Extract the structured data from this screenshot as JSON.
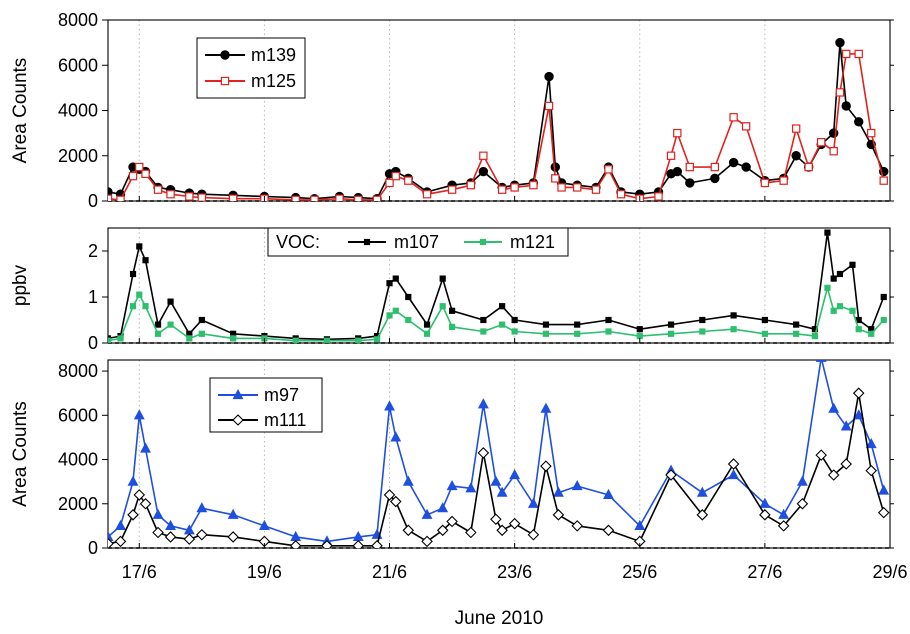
{
  "figure": {
    "xlabel": "June 2010",
    "x_ticks": [
      "17/6",
      "19/6",
      "21/6",
      "23/6",
      "25/6",
      "27/6",
      "29/6"
    ]
  },
  "chart_data": [
    {
      "type": "line",
      "panel": "top",
      "ylabel": "Area Counts",
      "ylim": [
        0,
        8000
      ],
      "y_ticks": [
        "0",
        "2000",
        "4000",
        "6000",
        "8000"
      ],
      "xlim": [
        16.5,
        29.0
      ],
      "grid": "vertical dotted",
      "legend": "top-left",
      "series": [
        {
          "name": "m139",
          "color": "#000000",
          "marker": "filled-circle",
          "x": [
            16.5,
            16.7,
            16.9,
            17.0,
            17.1,
            17.3,
            17.5,
            17.8,
            18.0,
            18.5,
            19.0,
            19.5,
            19.8,
            20.2,
            20.5,
            20.8,
            21.0,
            21.1,
            21.3,
            21.6,
            22.0,
            22.3,
            22.5,
            22.8,
            23.0,
            23.3,
            23.55,
            23.65,
            23.75,
            24.0,
            24.3,
            24.5,
            24.7,
            25.0,
            25.3,
            25.5,
            25.6,
            25.8,
            26.2,
            26.5,
            26.7,
            27.0,
            27.3,
            27.5,
            27.7,
            27.9,
            28.1,
            28.2,
            28.3,
            28.5,
            28.7,
            28.9
          ],
          "y": [
            400,
            300,
            1500,
            1400,
            1300,
            600,
            500,
            350,
            300,
            250,
            200,
            150,
            100,
            200,
            150,
            100,
            1200,
            1300,
            1000,
            400,
            700,
            800,
            1300,
            600,
            700,
            800,
            5500,
            1500,
            800,
            700,
            600,
            1500,
            400,
            300,
            400,
            1200,
            1300,
            800,
            1000,
            1700,
            1500,
            900,
            1000,
            2000,
            1500,
            2500,
            3000,
            7000,
            4200,
            3500,
            2500,
            1300
          ]
        },
        {
          "name": "m125",
          "color": "#e0231f",
          "marker": "open-square",
          "x": [
            16.5,
            16.7,
            16.9,
            17.0,
            17.1,
            17.3,
            17.5,
            17.8,
            18.0,
            18.5,
            19.0,
            19.5,
            19.8,
            20.2,
            20.5,
            20.8,
            21.0,
            21.1,
            21.3,
            21.6,
            22.0,
            22.3,
            22.5,
            22.8,
            23.0,
            23.3,
            23.55,
            23.65,
            23.75,
            24.0,
            24.3,
            24.5,
            24.7,
            25.0,
            25.3,
            25.5,
            25.6,
            25.8,
            26.2,
            26.5,
            26.7,
            27.0,
            27.3,
            27.5,
            27.7,
            27.9,
            28.1,
            28.2,
            28.3,
            28.5,
            28.7,
            28.9
          ],
          "y": [
            100,
            50,
            1100,
            1500,
            1200,
            500,
            300,
            200,
            150,
            100,
            100,
            50,
            50,
            100,
            50,
            50,
            800,
            1100,
            900,
            300,
            500,
            700,
            2000,
            500,
            600,
            700,
            4200,
            1000,
            600,
            600,
            500,
            1400,
            300,
            100,
            200,
            2000,
            3000,
            1500,
            1500,
            3700,
            3300,
            800,
            900,
            3200,
            1500,
            2600,
            2200,
            4800,
            6500,
            6500,
            3000,
            900
          ]
        }
      ]
    },
    {
      "type": "line",
      "panel": "middle",
      "ylabel": "ppbv",
      "ylim": [
        0,
        2.5
      ],
      "y_ticks": [
        "0",
        "1",
        "2"
      ],
      "xlim": [
        16.5,
        29.0
      ],
      "grid": "vertical dotted",
      "legend": "top-center",
      "legend_title": "VOC:",
      "series": [
        {
          "name": "m107",
          "color": "#000000",
          "marker": "filled-square",
          "x": [
            16.5,
            16.7,
            16.9,
            17.0,
            17.1,
            17.3,
            17.5,
            17.8,
            18.0,
            18.5,
            19.0,
            19.5,
            20.0,
            20.5,
            20.8,
            21.0,
            21.1,
            21.3,
            21.6,
            21.85,
            22.0,
            22.5,
            22.8,
            23.0,
            23.5,
            24.0,
            24.5,
            25.0,
            25.5,
            26.0,
            26.5,
            27.0,
            27.5,
            27.8,
            28.0,
            28.1,
            28.2,
            28.4,
            28.5,
            28.7,
            28.9
          ],
          "y": [
            0.1,
            0.15,
            1.5,
            2.1,
            1.8,
            0.4,
            0.9,
            0.2,
            0.5,
            0.2,
            0.15,
            0.1,
            0.08,
            0.1,
            0.15,
            1.3,
            1.4,
            1.0,
            0.4,
            1.4,
            0.7,
            0.5,
            0.8,
            0.5,
            0.4,
            0.4,
            0.5,
            0.3,
            0.4,
            0.5,
            0.6,
            0.5,
            0.4,
            0.3,
            2.4,
            1.4,
            1.5,
            1.7,
            0.5,
            0.3,
            1.0
          ]
        },
        {
          "name": "m121",
          "color": "#2dbf6e",
          "marker": "filled-square",
          "x": [
            16.5,
            16.7,
            16.9,
            17.0,
            17.1,
            17.3,
            17.5,
            17.8,
            18.0,
            18.5,
            19.0,
            19.5,
            20.0,
            20.5,
            20.8,
            21.0,
            21.1,
            21.3,
            21.6,
            21.85,
            22.0,
            22.5,
            22.8,
            23.0,
            23.5,
            24.0,
            24.5,
            25.0,
            25.5,
            26.0,
            26.5,
            27.0,
            27.5,
            27.8,
            28.0,
            28.1,
            28.2,
            28.4,
            28.5,
            28.7,
            28.9
          ],
          "y": [
            0.05,
            0.1,
            0.8,
            1.05,
            0.8,
            0.2,
            0.4,
            0.1,
            0.2,
            0.1,
            0.1,
            0.05,
            0.05,
            0.05,
            0.08,
            0.6,
            0.7,
            0.5,
            0.2,
            0.8,
            0.35,
            0.25,
            0.4,
            0.25,
            0.2,
            0.2,
            0.25,
            0.15,
            0.2,
            0.25,
            0.3,
            0.2,
            0.2,
            0.15,
            1.2,
            0.7,
            0.8,
            0.7,
            0.3,
            0.2,
            0.5
          ]
        }
      ]
    },
    {
      "type": "line",
      "panel": "bottom",
      "ylabel": "Area Counts",
      "ylim": [
        0,
        8500
      ],
      "y_ticks": [
        "0",
        "2000",
        "4000",
        "6000",
        "8000"
      ],
      "xlim": [
        16.5,
        29.0
      ],
      "grid": "vertical dotted",
      "legend": "top-left",
      "series": [
        {
          "name": "m97",
          "color": "#1f4fe0",
          "marker": "filled-triangle",
          "x": [
            16.5,
            16.7,
            16.9,
            17.0,
            17.1,
            17.3,
            17.5,
            17.8,
            18.0,
            18.5,
            19.0,
            19.5,
            20.0,
            20.5,
            20.8,
            21.0,
            21.1,
            21.3,
            21.6,
            21.85,
            22.0,
            22.3,
            22.5,
            22.7,
            22.8,
            23.0,
            23.3,
            23.5,
            23.7,
            24.0,
            24.5,
            25.0,
            25.5,
            26.0,
            26.5,
            27.0,
            27.3,
            27.6,
            27.9,
            28.1,
            28.3,
            28.5,
            28.7,
            28.9
          ],
          "y": [
            500,
            1000,
            3000,
            6000,
            4500,
            1500,
            1000,
            800,
            1800,
            1500,
            1000,
            500,
            300,
            500,
            600,
            6400,
            5000,
            3000,
            1500,
            1800,
            2800,
            2700,
            6500,
            3000,
            2500,
            3300,
            2000,
            6300,
            2500,
            2800,
            2400,
            1000,
            3500,
            2500,
            3300,
            2000,
            1500,
            3000,
            8600,
            6300,
            5500,
            6000,
            4700,
            2600
          ]
        },
        {
          "name": "m111",
          "color": "#000000",
          "marker": "open-diamond",
          "x": [
            16.5,
            16.7,
            16.9,
            17.0,
            17.1,
            17.3,
            17.5,
            17.8,
            18.0,
            18.5,
            19.0,
            19.5,
            20.0,
            20.5,
            20.8,
            21.0,
            21.1,
            21.3,
            21.6,
            21.85,
            22.0,
            22.3,
            22.5,
            22.7,
            22.8,
            23.0,
            23.3,
            23.5,
            23.7,
            24.0,
            24.5,
            25.0,
            25.5,
            26.0,
            26.5,
            27.0,
            27.3,
            27.6,
            27.9,
            28.1,
            28.3,
            28.5,
            28.7,
            28.9
          ],
          "y": [
            200,
            300,
            1500,
            2400,
            2000,
            700,
            500,
            400,
            600,
            500,
            300,
            100,
            100,
            100,
            100,
            2400,
            2100,
            800,
            300,
            800,
            1200,
            700,
            4300,
            1300,
            800,
            1100,
            600,
            3700,
            1500,
            1000,
            800,
            300,
            3300,
            1500,
            3800,
            1500,
            1000,
            2000,
            4200,
            3300,
            3800,
            7000,
            3500,
            1600
          ]
        }
      ]
    }
  ]
}
